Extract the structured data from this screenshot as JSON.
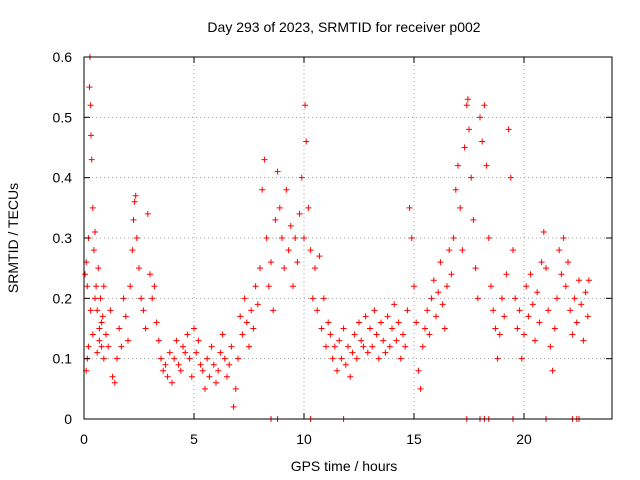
{
  "chart_data": {
    "type": "scatter",
    "title": "Day 293 of 2023, SRMTID for receiver p002",
    "xlabel": "GPS time / hours",
    "ylabel": "SRMTID / TECUs",
    "xlim": [
      0,
      24
    ],
    "ylim": [
      0,
      0.6
    ],
    "xticks": [
      0,
      5,
      10,
      15,
      20
    ],
    "yticks": [
      0,
      0.1,
      0.2,
      0.3,
      0.4,
      0.5,
      0.6
    ],
    "xtick_labels": [
      "0",
      "5",
      "10",
      "15",
      "20"
    ],
    "ytick_labels": [
      "0",
      "0.1",
      "0.2",
      "0.3",
      "0.4",
      "0.5",
      "0.6"
    ],
    "grid": true,
    "marker": "+",
    "color": "#ff0000",
    "series": [
      {
        "name": "SRMTID",
        "points": [
          [
            0.05,
            0.24
          ],
          [
            0.1,
            0.26
          ],
          [
            0.15,
            0.22
          ],
          [
            0.2,
            0.3
          ],
          [
            0.25,
            0.55
          ],
          [
            0.27,
            0.6
          ],
          [
            0.3,
            0.52
          ],
          [
            0.32,
            0.47
          ],
          [
            0.35,
            0.43
          ],
          [
            0.4,
            0.35
          ],
          [
            0.45,
            0.28
          ],
          [
            0.5,
            0.31
          ],
          [
            0.55,
            0.22
          ],
          [
            0.6,
            0.18
          ],
          [
            0.65,
            0.25
          ],
          [
            0.7,
            0.15
          ],
          [
            0.75,
            0.2
          ],
          [
            0.8,
            0.12
          ],
          [
            0.85,
            0.17
          ],
          [
            0.9,
            0.22
          ],
          [
            0.1,
            0.08
          ],
          [
            0.15,
            0.1
          ],
          [
            0.2,
            0.12
          ],
          [
            0.3,
            0.18
          ],
          [
            0.4,
            0.14
          ],
          [
            0.5,
            0.2
          ],
          [
            0.6,
            0.11
          ],
          [
            0.7,
            0.13
          ],
          [
            0.8,
            0.16
          ],
          [
            0.9,
            0.1
          ],
          [
            1.0,
            0.14
          ],
          [
            1.1,
            0.12
          ],
          [
            1.2,
            0.18
          ],
          [
            1.3,
            0.07
          ],
          [
            1.4,
            0.06
          ],
          [
            1.5,
            0.1
          ],
          [
            1.6,
            0.15
          ],
          [
            1.7,
            0.12
          ],
          [
            1.8,
            0.2
          ],
          [
            1.9,
            0.17
          ],
          [
            2.0,
            0.13
          ],
          [
            2.1,
            0.22
          ],
          [
            2.2,
            0.28
          ],
          [
            2.25,
            0.33
          ],
          [
            2.3,
            0.36
          ],
          [
            2.35,
            0.37
          ],
          [
            2.4,
            0.3
          ],
          [
            2.5,
            0.25
          ],
          [
            2.6,
            0.2
          ],
          [
            2.7,
            0.18
          ],
          [
            2.8,
            0.15
          ],
          [
            2.9,
            0.34
          ],
          [
            3.0,
            0.24
          ],
          [
            3.1,
            0.2
          ],
          [
            3.2,
            0.22
          ],
          [
            3.3,
            0.16
          ],
          [
            3.4,
            0.13
          ],
          [
            3.5,
            0.1
          ],
          [
            3.6,
            0.08
          ],
          [
            3.7,
            0.09
          ],
          [
            3.8,
            0.07
          ],
          [
            3.9,
            0.11
          ],
          [
            4.0,
            0.06
          ],
          [
            4.1,
            0.1
          ],
          [
            4.2,
            0.13
          ],
          [
            4.3,
            0.09
          ],
          [
            4.4,
            0.08
          ],
          [
            4.5,
            0.12
          ],
          [
            4.6,
            0.11
          ],
          [
            4.7,
            0.14
          ],
          [
            4.8,
            0.1
          ],
          [
            4.9,
            0.07
          ],
          [
            5.0,
            0.15
          ],
          [
            5.1,
            0.11
          ],
          [
            5.2,
            0.13
          ],
          [
            5.3,
            0.09
          ],
          [
            5.4,
            0.08
          ],
          [
            5.5,
            0.05
          ],
          [
            5.6,
            0.1
          ],
          [
            5.7,
            0.07
          ],
          [
            5.8,
            0.12
          ],
          [
            5.9,
            0.09
          ],
          [
            6.0,
            0.06
          ],
          [
            6.1,
            0.08
          ],
          [
            6.2,
            0.11
          ],
          [
            6.3,
            0.14
          ],
          [
            6.4,
            0.1
          ],
          [
            6.5,
            0.07
          ],
          [
            6.6,
            0.09
          ],
          [
            6.7,
            0.12
          ],
          [
            6.8,
            0.02
          ],
          [
            6.9,
            0.05
          ],
          [
            7.0,
            0.1
          ],
          [
            7.1,
            0.17
          ],
          [
            7.2,
            0.14
          ],
          [
            7.3,
            0.2
          ],
          [
            7.4,
            0.16
          ],
          [
            7.5,
            0.12
          ],
          [
            7.6,
            0.18
          ],
          [
            7.7,
            0.15
          ],
          [
            7.8,
            0.22
          ],
          [
            7.9,
            0.19
          ],
          [
            8.0,
            0.25
          ],
          [
            8.1,
            0.38
          ],
          [
            8.2,
            0.43
          ],
          [
            8.3,
            0.3
          ],
          [
            8.4,
            0.22
          ],
          [
            8.5,
            0.26
          ],
          [
            8.6,
            0.18
          ],
          [
            8.7,
            0.33
          ],
          [
            8.8,
            0.41
          ],
          [
            8.9,
            0.35
          ],
          [
            9.0,
            0.3
          ],
          [
            9.1,
            0.25
          ],
          [
            9.2,
            0.38
          ],
          [
            9.3,
            0.28
          ],
          [
            9.4,
            0.32
          ],
          [
            9.5,
            0.22
          ],
          [
            9.6,
            0.3
          ],
          [
            9.7,
            0.26
          ],
          [
            9.8,
            0.34
          ],
          [
            9.9,
            0.4
          ],
          [
            10.0,
            0.3
          ],
          [
            10.05,
            0.52
          ],
          [
            10.1,
            0.46
          ],
          [
            10.2,
            0.35
          ],
          [
            10.3,
            0.28
          ],
          [
            10.4,
            0.2
          ],
          [
            10.5,
            0.25
          ],
          [
            10.6,
            0.18
          ],
          [
            10.7,
            0.27
          ],
          [
            10.8,
            0.15
          ],
          [
            10.9,
            0.2
          ],
          [
            11.0,
            0.12
          ],
          [
            11.1,
            0.16
          ],
          [
            11.2,
            0.14
          ],
          [
            11.3,
            0.1
          ],
          [
            11.4,
            0.12
          ],
          [
            11.5,
            0.08
          ],
          [
            11.6,
            0.13
          ],
          [
            11.7,
            0.1
          ],
          [
            11.8,
            0.15
          ],
          [
            11.9,
            0.09
          ],
          [
            12.0,
            0.12
          ],
          [
            12.1,
            0.07
          ],
          [
            12.2,
            0.11
          ],
          [
            12.3,
            0.14
          ],
          [
            12.4,
            0.1
          ],
          [
            12.5,
            0.16
          ],
          [
            12.6,
            0.13
          ],
          [
            12.7,
            0.12
          ],
          [
            12.8,
            0.17
          ],
          [
            12.9,
            0.11
          ],
          [
            13.0,
            0.15
          ],
          [
            13.1,
            0.12
          ],
          [
            13.2,
            0.18
          ],
          [
            13.3,
            0.14
          ],
          [
            13.4,
            0.1
          ],
          [
            13.5,
            0.16
          ],
          [
            13.6,
            0.13
          ],
          [
            13.7,
            0.11
          ],
          [
            13.8,
            0.17
          ],
          [
            13.9,
            0.12
          ],
          [
            14.0,
            0.15
          ],
          [
            14.1,
            0.19
          ],
          [
            14.2,
            0.13
          ],
          [
            14.3,
            0.16
          ],
          [
            14.4,
            0.1
          ],
          [
            14.5,
            0.14
          ],
          [
            14.6,
            0.12
          ],
          [
            14.7,
            0.18
          ],
          [
            14.8,
            0.35
          ],
          [
            14.9,
            0.3
          ],
          [
            15.0,
            0.22
          ],
          [
            15.1,
            0.16
          ],
          [
            15.2,
            0.08
          ],
          [
            15.3,
            0.05
          ],
          [
            15.4,
            0.12
          ],
          [
            15.5,
            0.15
          ],
          [
            15.6,
            0.18
          ],
          [
            15.7,
            0.14
          ],
          [
            15.8,
            0.2
          ],
          [
            15.9,
            0.23
          ],
          [
            16.0,
            0.17
          ],
          [
            16.1,
            0.21
          ],
          [
            16.2,
            0.26
          ],
          [
            16.3,
            0.19
          ],
          [
            16.4,
            0.15
          ],
          [
            16.5,
            0.22
          ],
          [
            16.6,
            0.28
          ],
          [
            16.7,
            0.24
          ],
          [
            16.8,
            0.3
          ],
          [
            16.9,
            0.38
          ],
          [
            17.0,
            0.42
          ],
          [
            17.1,
            0.35
          ],
          [
            17.2,
            0.28
          ],
          [
            17.3,
            0.45
          ],
          [
            17.4,
            0.52
          ],
          [
            17.45,
            0.53
          ],
          [
            17.5,
            0.48
          ],
          [
            17.6,
            0.4
          ],
          [
            17.7,
            0.33
          ],
          [
            17.8,
            0.25
          ],
          [
            17.9,
            0.2
          ],
          [
            18.0,
            0.5
          ],
          [
            18.1,
            0.46
          ],
          [
            18.2,
            0.52
          ],
          [
            18.3,
            0.42
          ],
          [
            18.4,
            0.3
          ],
          [
            18.5,
            0.22
          ],
          [
            18.6,
            0.18
          ],
          [
            18.7,
            0.15
          ],
          [
            18.8,
            0.1
          ],
          [
            18.9,
            0.14
          ],
          [
            19.0,
            0.2
          ],
          [
            19.1,
            0.17
          ],
          [
            19.2,
            0.24
          ],
          [
            19.3,
            0.48
          ],
          [
            19.4,
            0.4
          ],
          [
            19.5,
            0.28
          ],
          [
            19.6,
            0.2
          ],
          [
            19.7,
            0.15
          ],
          [
            19.8,
            0.18
          ],
          [
            19.9,
            0.1
          ],
          [
            20.0,
            0.14
          ],
          [
            20.1,
            0.22
          ],
          [
            20.2,
            0.17
          ],
          [
            20.3,
            0.24
          ],
          [
            20.4,
            0.19
          ],
          [
            20.5,
            0.13
          ],
          [
            20.6,
            0.21
          ],
          [
            20.7,
            0.16
          ],
          [
            20.8,
            0.26
          ],
          [
            20.9,
            0.31
          ],
          [
            21.0,
            0.25
          ],
          [
            21.1,
            0.18
          ],
          [
            21.2,
            0.12
          ],
          [
            21.3,
            0.08
          ],
          [
            21.4,
            0.15
          ],
          [
            21.5,
            0.2
          ],
          [
            21.6,
            0.28
          ],
          [
            21.7,
            0.24
          ],
          [
            21.8,
            0.3
          ],
          [
            21.9,
            0.22
          ],
          [
            22.0,
            0.26
          ],
          [
            22.1,
            0.18
          ],
          [
            22.2,
            0.14
          ],
          [
            22.3,
            0.2
          ],
          [
            22.4,
            0.16
          ],
          [
            22.5,
            0.23
          ],
          [
            22.6,
            0.19
          ],
          [
            22.7,
            0.13
          ],
          [
            22.8,
            0.21
          ],
          [
            22.9,
            0.17
          ],
          [
            22.95,
            0.23
          ],
          [
            8.5,
            0.0
          ],
          [
            8.8,
            0.0
          ],
          [
            10.3,
            0.0
          ],
          [
            11.8,
            0.0
          ],
          [
            17.4,
            0.0
          ],
          [
            18.0,
            0.0
          ],
          [
            18.2,
            0.0
          ],
          [
            18.4,
            0.0
          ],
          [
            19.5,
            0.0
          ],
          [
            21.0,
            0.0
          ],
          [
            22.2,
            0.0
          ],
          [
            22.4,
            0.0
          ],
          [
            22.5,
            0.0
          ]
        ]
      }
    ]
  }
}
